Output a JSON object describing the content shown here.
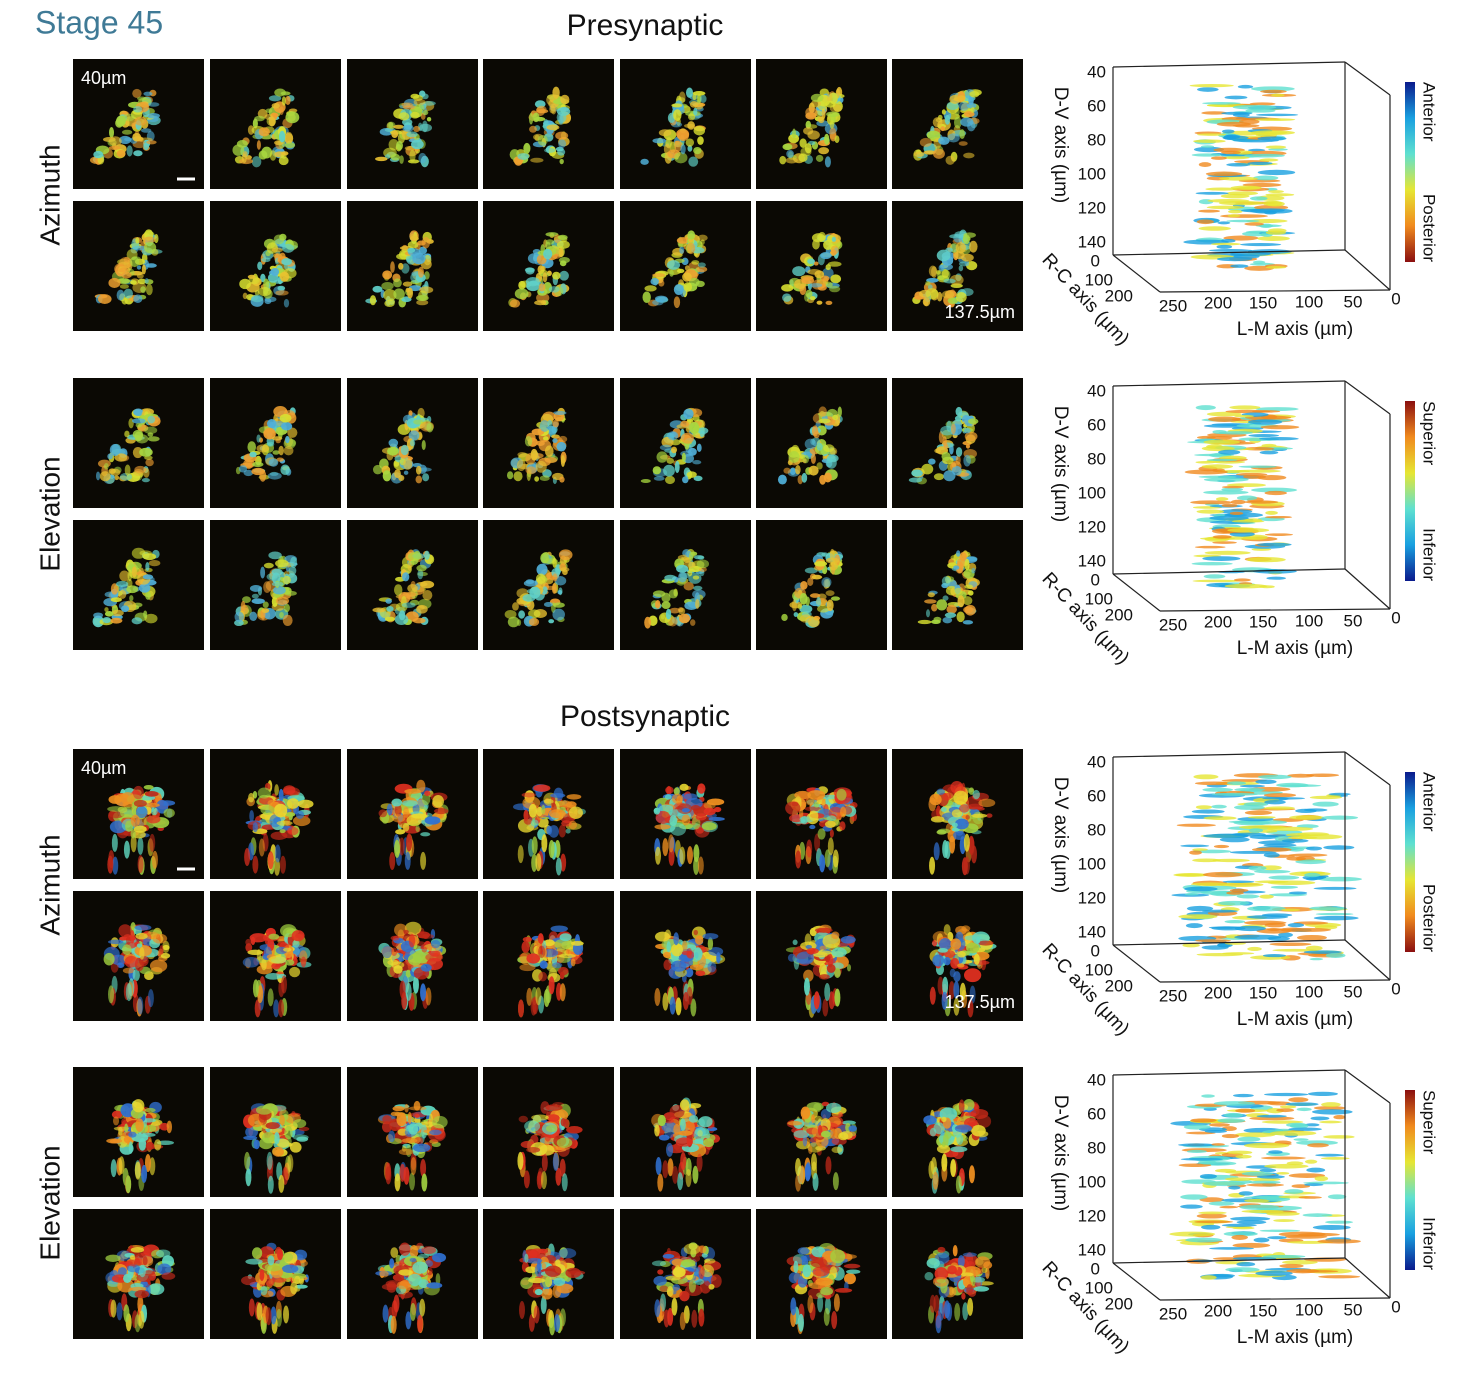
{
  "header": {
    "title": "Stage 45"
  },
  "sections": [
    {
      "title": "Presynaptic",
      "groups": [
        {
          "label": "Azimuth",
          "start_depth": "40µm",
          "end_depth": "137.5µm",
          "plot": {
            "y_label": "D-V axis (µm)",
            "y_ticks": [
              40,
              60,
              80,
              100,
              120,
              140
            ],
            "depth_label": "R-C axis (µm)",
            "depth_ticks": [
              0,
              100,
              200
            ],
            "x_label": "L-M axis (µm)",
            "x_ticks": [
              250,
              200,
              150,
              100,
              50,
              0
            ],
            "colorbar_top": "Anterior",
            "colorbar_bottom": "Posterior",
            "colorbar_colors": [
              "#0a1a8c",
              "#19a0e0",
              "#5fe0d0",
              "#e6e633",
              "#f08a1e",
              "#8a0f0f"
            ]
          }
        },
        {
          "label": "Elevation",
          "plot": {
            "y_label": "D-V axis (µm)",
            "y_ticks": [
              40,
              60,
              80,
              100,
              120,
              140
            ],
            "depth_label": "R-C axis (µm)",
            "depth_ticks": [
              0,
              100,
              200
            ],
            "x_label": "L-M axis (µm)",
            "x_ticks": [
              250,
              200,
              150,
              100,
              50,
              0
            ],
            "colorbar_top": "Superior",
            "colorbar_bottom": "Inferior",
            "colorbar_colors": [
              "#8a0f0f",
              "#f08a1e",
              "#e6e633",
              "#5fe0d0",
              "#19a0e0",
              "#0a1a8c"
            ]
          }
        }
      ]
    },
    {
      "title": "Postsynaptic",
      "groups": [
        {
          "label": "Azimuth",
          "start_depth": "40µm",
          "end_depth": "137.5µm",
          "plot": {
            "y_label": "D-V axis (µm)",
            "y_ticks": [
              40,
              60,
              80,
              100,
              120,
              140
            ],
            "depth_label": "R-C axis (µm)",
            "depth_ticks": [
              0,
              100,
              200
            ],
            "x_label": "L-M axis (µm)",
            "x_ticks": [
              250,
              200,
              150,
              100,
              50,
              0
            ],
            "colorbar_top": "Anterior",
            "colorbar_bottom": "Posterior",
            "colorbar_colors": [
              "#0a1a8c",
              "#19a0e0",
              "#5fe0d0",
              "#e6e633",
              "#f08a1e",
              "#8a0f0f"
            ]
          }
        },
        {
          "label": "Elevation",
          "plot": {
            "y_label": "D-V axis (µm)",
            "y_ticks": [
              40,
              60,
              80,
              100,
              120,
              140
            ],
            "depth_label": "R-C axis (µm)",
            "depth_ticks": [
              0,
              100,
              200
            ],
            "x_label": "L-M axis (µm)",
            "x_ticks": [
              250,
              200,
              150,
              100,
              50,
              0
            ],
            "colorbar_top": "Superior",
            "colorbar_bottom": "Inferior",
            "colorbar_colors": [
              "#8a0f0f",
              "#f08a1e",
              "#e6e633",
              "#5fe0d0",
              "#19a0e0",
              "#0a1a8c"
            ]
          }
        }
      ]
    }
  ]
}
